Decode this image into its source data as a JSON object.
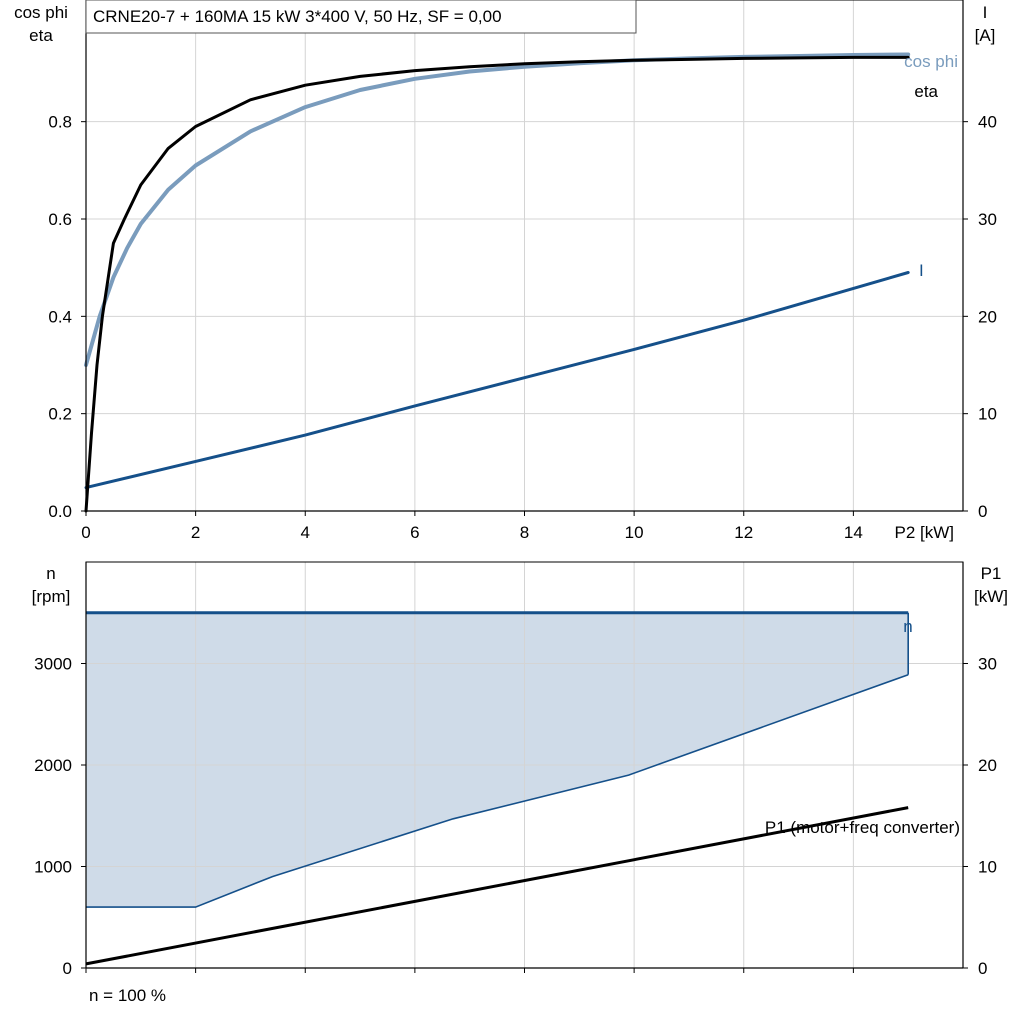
{
  "chart_data": [
    {
      "type": "line",
      "title": "CRNE20-7 + 160MA   15 kW   3*400 V, 50 Hz, SF = 0,00",
      "xlabel": "P2 [kW]",
      "ylabel_left_line1": "cos phi",
      "ylabel_left_line2": "eta",
      "ylabel_right_line1": "I",
      "ylabel_right_line2": "[A]",
      "xlim": [
        0,
        16
      ],
      "ylim_left": [
        0,
        1.05
      ],
      "ylim_right": [
        0,
        52.5
      ],
      "x_ticks": [
        "0",
        "2",
        "4",
        "6",
        "8",
        "10",
        "12",
        "14"
      ],
      "y_ticks_left": [
        "0.0",
        "0.2",
        "0.4",
        "0.6",
        "0.8"
      ],
      "y_ticks_right": [
        "0",
        "10",
        "20",
        "30",
        "40"
      ],
      "grid": true,
      "series": [
        {
          "name": "cos phi",
          "axis": "left",
          "color": "#7a9cbd",
          "x": [
            0,
            0.25,
            0.5,
            0.75,
            1.0,
            1.5,
            2.0,
            3.0,
            4.0,
            5.0,
            6.0,
            7.0,
            8.0,
            9.0,
            10.0,
            11.0,
            12.0,
            13.0,
            14.0,
            15.0
          ],
          "y": [
            0.3,
            0.4,
            0.48,
            0.54,
            0.59,
            0.66,
            0.71,
            0.78,
            0.83,
            0.865,
            0.888,
            0.903,
            0.913,
            0.92,
            0.926,
            0.93,
            0.933,
            0.935,
            0.937,
            0.938
          ]
        },
        {
          "name": "eta",
          "axis": "left",
          "color": "#000000",
          "x": [
            0,
            0.1,
            0.2,
            0.3,
            0.5,
            0.7,
            1.0,
            1.5,
            2.0,
            3.0,
            4.0,
            5.0,
            6.0,
            7.0,
            8.0,
            9.0,
            10.0,
            11.0,
            12.0,
            13.0,
            14.0,
            15.0
          ],
          "y": [
            0.0,
            0.16,
            0.3,
            0.4,
            0.55,
            0.6,
            0.67,
            0.745,
            0.79,
            0.845,
            0.875,
            0.893,
            0.905,
            0.913,
            0.919,
            0.923,
            0.926,
            0.928,
            0.93,
            0.931,
            0.932,
            0.932
          ]
        },
        {
          "name": "I",
          "axis": "right",
          "color": "#15508a",
          "x": [
            0,
            2,
            4,
            6,
            8,
            10,
            12,
            15
          ],
          "y": [
            2.4,
            5.1,
            7.8,
            10.8,
            13.7,
            16.6,
            19.6,
            24.5
          ]
        }
      ]
    },
    {
      "type": "area",
      "xlabel": "",
      "ylabel_left_line1": "n",
      "ylabel_left_line2": "[rpm]",
      "ylabel_right_line1": "P1",
      "ylabel_right_line2": "[kW]",
      "xlim": [
        0,
        16
      ],
      "ylim_left": [
        0,
        4000
      ],
      "ylim_right": [
        0,
        40
      ],
      "y_ticks_left": [
        "0",
        "1000",
        "2000",
        "3000"
      ],
      "y_ticks_right": [
        "0",
        "10",
        "20",
        "30"
      ],
      "grid": true,
      "footnote": "n = 100 %",
      "series": [
        {
          "name": "n",
          "axis": "left",
          "color": "#15508a",
          "fill": "#cfdbe8",
          "x": [
            0,
            15
          ],
          "y": [
            3500,
            3500
          ],
          "lower_bound_x": [
            0,
            2,
            3.4,
            6.7,
            9.9,
            15
          ],
          "lower_bound_y": [
            600,
            600,
            900,
            1470,
            1900,
            2890
          ]
        },
        {
          "name": "P1 (motor+freq converter)",
          "axis": "right",
          "color": "#000000",
          "x": [
            0,
            15
          ],
          "y": [
            0.4,
            15.8
          ]
        }
      ]
    }
  ]
}
